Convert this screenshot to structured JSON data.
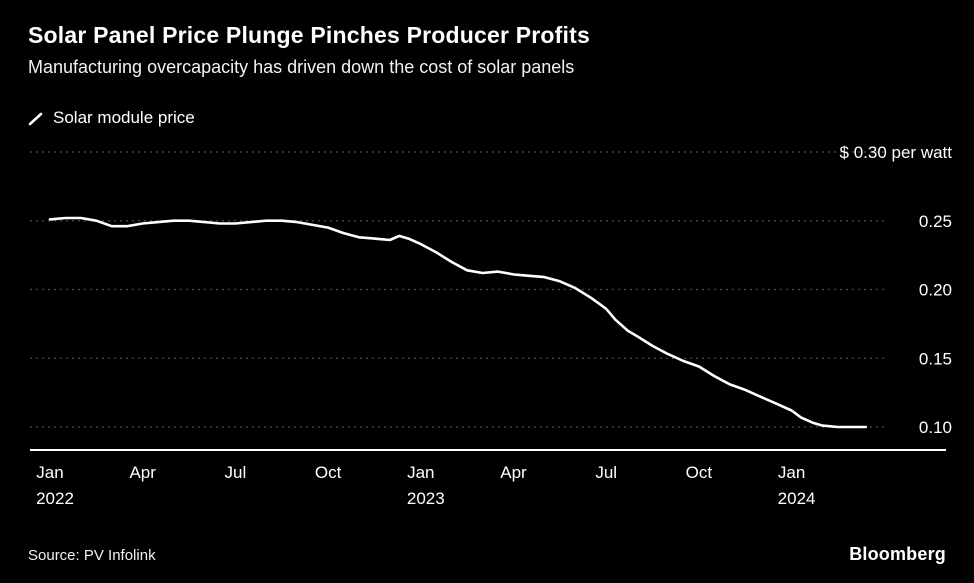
{
  "header": {
    "title": "Solar Panel Price Plunge Pinches Producer Profits",
    "subtitle": "Manufacturing overcapacity has driven down the cost of solar panels"
  },
  "legend": {
    "label": "Solar module price",
    "line_color": "#ffffff"
  },
  "chart_data": {
    "type": "line",
    "title": "Solar Panel Price Plunge Pinches Producer Profits",
    "subtitle": "Manufacturing overcapacity has driven down the cost of solar panels",
    "x_unit": "months since Jan 2022",
    "ylabel": "$ per watt",
    "ylim": [
      0.085,
      0.3
    ],
    "grid": "horizontal-dashed",
    "grid_color": "#4d4d4d",
    "background_color": "#000000",
    "legend_position": "top-left",
    "yticks": [
      {
        "value": 0.3,
        "label": "$ 0.30 per watt"
      },
      {
        "value": 0.25,
        "label": "0.25"
      },
      {
        "value": 0.2,
        "label": "0.20"
      },
      {
        "value": 0.15,
        "label": "0.15"
      },
      {
        "value": 0.1,
        "label": "0.10"
      }
    ],
    "xticks": [
      {
        "month": 0,
        "label": "Jan",
        "year": "2022"
      },
      {
        "month": 3,
        "label": "Apr",
        "year": ""
      },
      {
        "month": 6,
        "label": "Jul",
        "year": ""
      },
      {
        "month": 9,
        "label": "Oct",
        "year": ""
      },
      {
        "month": 12,
        "label": "Jan",
        "year": "2023"
      },
      {
        "month": 15,
        "label": "Apr",
        "year": ""
      },
      {
        "month": 18,
        "label": "Jul",
        "year": ""
      },
      {
        "month": 21,
        "label": "Oct",
        "year": ""
      },
      {
        "month": 24,
        "label": "Jan",
        "year": "2024"
      }
    ],
    "series": [
      {
        "name": "Solar module price",
        "color": "#ffffff",
        "points": [
          [
            0,
            0.251
          ],
          [
            0.5,
            0.252
          ],
          [
            1,
            0.252
          ],
          [
            1.5,
            0.25
          ],
          [
            2,
            0.246
          ],
          [
            2.5,
            0.246
          ],
          [
            3,
            0.248
          ],
          [
            3.5,
            0.249
          ],
          [
            4,
            0.25
          ],
          [
            4.5,
            0.25
          ],
          [
            5,
            0.249
          ],
          [
            5.5,
            0.248
          ],
          [
            6,
            0.248
          ],
          [
            6.5,
            0.249
          ],
          [
            7,
            0.25
          ],
          [
            7.5,
            0.25
          ],
          [
            8,
            0.249
          ],
          [
            8.5,
            0.247
          ],
          [
            9,
            0.245
          ],
          [
            9.5,
            0.241
          ],
          [
            10,
            0.238
          ],
          [
            10.5,
            0.237
          ],
          [
            11,
            0.236
          ],
          [
            11.3,
            0.239
          ],
          [
            11.6,
            0.237
          ],
          [
            12,
            0.233
          ],
          [
            12.5,
            0.227
          ],
          [
            13,
            0.22
          ],
          [
            13.5,
            0.214
          ],
          [
            14,
            0.212
          ],
          [
            14.5,
            0.213
          ],
          [
            15,
            0.211
          ],
          [
            15.5,
            0.21
          ],
          [
            16,
            0.209
          ],
          [
            16.5,
            0.206
          ],
          [
            17,
            0.201
          ],
          [
            17.5,
            0.194
          ],
          [
            18,
            0.186
          ],
          [
            18.3,
            0.178
          ],
          [
            18.7,
            0.17
          ],
          [
            19,
            0.166
          ],
          [
            19.5,
            0.159
          ],
          [
            20,
            0.153
          ],
          [
            20.5,
            0.148
          ],
          [
            21,
            0.144
          ],
          [
            21.5,
            0.137
          ],
          [
            22,
            0.131
          ],
          [
            22.5,
            0.127
          ],
          [
            23,
            0.122
          ],
          [
            23.5,
            0.117
          ],
          [
            24,
            0.112
          ],
          [
            24.3,
            0.107
          ],
          [
            24.7,
            0.103
          ],
          [
            25,
            0.101
          ],
          [
            25.5,
            0.1
          ],
          [
            26,
            0.1
          ],
          [
            26.4,
            0.1
          ]
        ]
      }
    ]
  },
  "footer": {
    "source": "Source: PV Infolink",
    "brand": "Bloomberg"
  }
}
